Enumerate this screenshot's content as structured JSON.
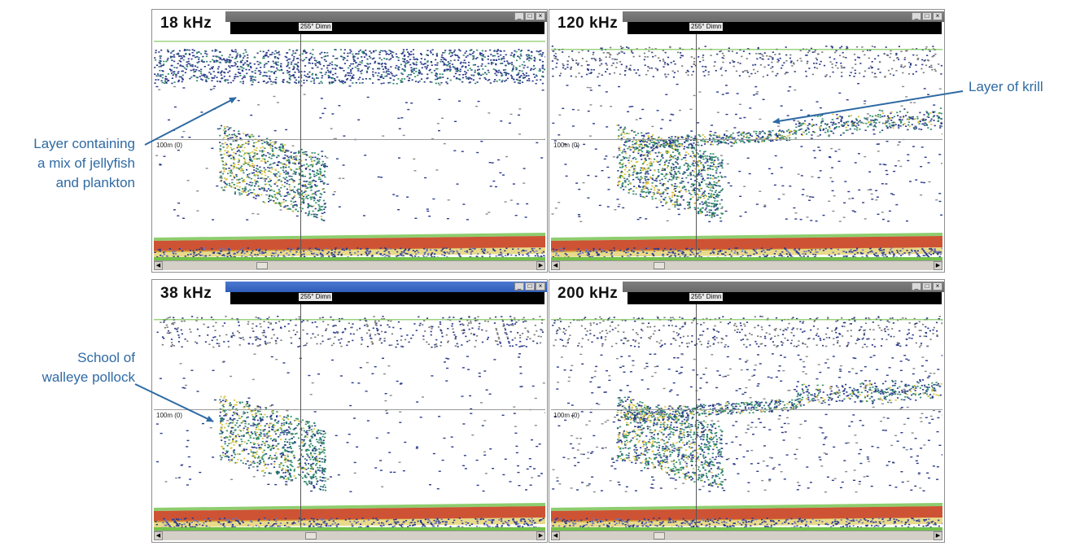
{
  "annotations": {
    "jellyfish": [
      "Layer containing",
      "a mix of jellyfish",
      "and plankton"
    ],
    "krill": [
      "Layer of krill"
    ],
    "pollock": [
      "School of",
      "walleye pollock"
    ]
  },
  "panels": [
    {
      "id": "18",
      "freq": "18 kHz",
      "dim": "255° Dimn",
      "depth_label": "100m (0)",
      "thumb_pos": 0.26
    },
    {
      "id": "120",
      "freq": "120 kHz",
      "dim": "255° Dimn",
      "depth_label": "100m (0)",
      "thumb_pos": 0.26
    },
    {
      "id": "38",
      "freq": "38 kHz",
      "dim": "255° Dimn",
      "depth_label": "100m (0)",
      "thumb_pos": 0.39
    },
    {
      "id": "200",
      "freq": "200 kHz",
      "dim": "255° Dimn",
      "depth_label": "100m (0)",
      "thumb_pos": 0.26
    }
  ],
  "colors": {
    "annotation": "#2f6aa3",
    "echo_weak": "#2a3a8a",
    "echo_mid": "#2f8a6a",
    "echo_strong": "#d8c23a",
    "echo_max": "#c8401e",
    "seabed_line": "#72c14a"
  }
}
